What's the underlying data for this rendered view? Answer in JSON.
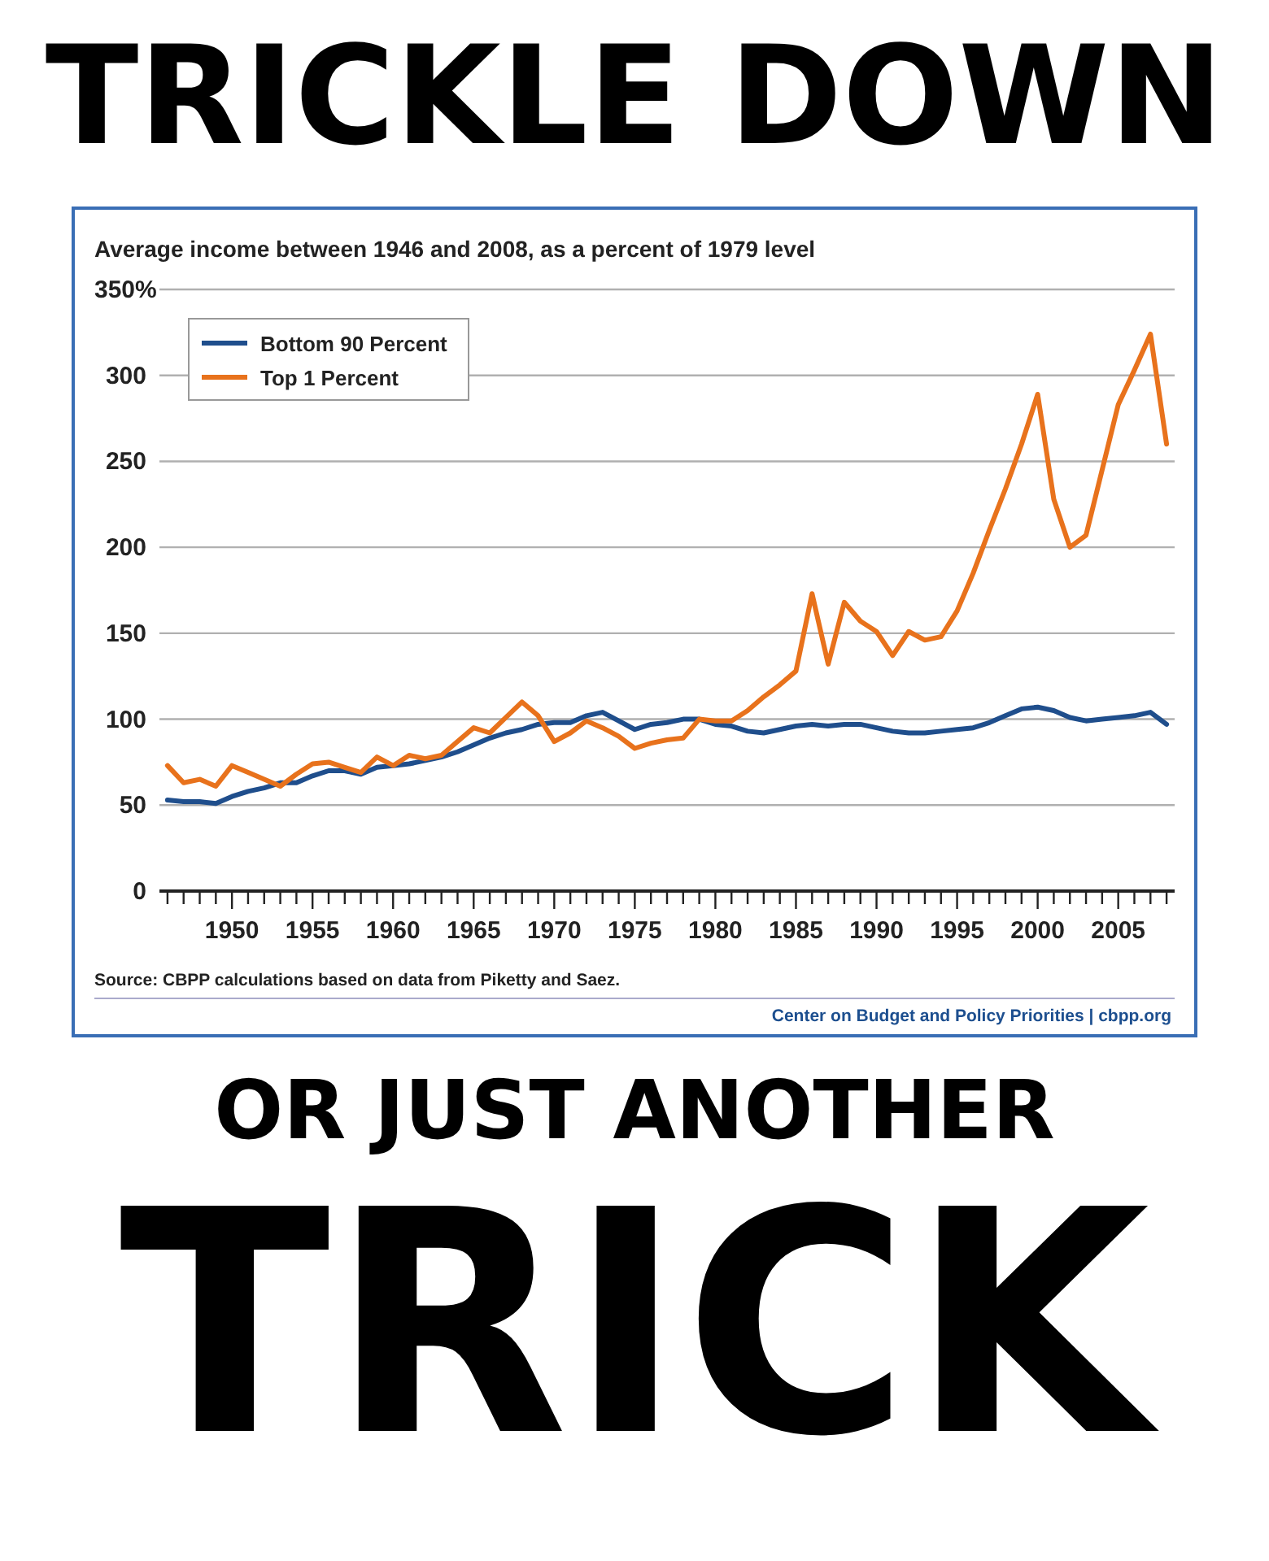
{
  "chart_data": {
    "type": "line",
    "title": "TRICKLE DOWN",
    "subtitle": "Average income between 1946 and 2008, as a percent of 1979 level",
    "annotations": [
      "Source: CBPP calculations based on data from Piketty and Saez.",
      "Center on Budget and Policy Priorities | cbpp.org",
      "OR JUST ANOTHER",
      "TRICK"
    ],
    "x": [
      1946,
      1947,
      1948,
      1949,
      1950,
      1951,
      1952,
      1953,
      1954,
      1955,
      1956,
      1957,
      1958,
      1959,
      1960,
      1961,
      1962,
      1963,
      1964,
      1965,
      1966,
      1967,
      1968,
      1969,
      1970,
      1971,
      1972,
      1973,
      1974,
      1975,
      1976,
      1977,
      1978,
      1979,
      1980,
      1981,
      1982,
      1983,
      1984,
      1985,
      1986,
      1987,
      1988,
      1989,
      1990,
      1991,
      1992,
      1993,
      1994,
      1995,
      1996,
      1997,
      1998,
      1999,
      2000,
      2001,
      2002,
      2003,
      2004,
      2005,
      2006,
      2007,
      2008
    ],
    "series": [
      {
        "name": "Bottom 90 Percent",
        "color": "#1f4e8c",
        "values": [
          53,
          52,
          52,
          51,
          55,
          58,
          60,
          63,
          63,
          67,
          70,
          70,
          68,
          72,
          73,
          74,
          76,
          78,
          81,
          85,
          89,
          92,
          94,
          97,
          98,
          98,
          102,
          104,
          99,
          94,
          97,
          98,
          100,
          100,
          97,
          96,
          93,
          92,
          94,
          96,
          97,
          96,
          97,
          97,
          95,
          93,
          92,
          92,
          93,
          94,
          95,
          98,
          102,
          106,
          107,
          105,
          101,
          99,
          100,
          101,
          102,
          104,
          97
        ]
      },
      {
        "name": "Top 1 Percent",
        "color": "#e8721c",
        "values": [
          73,
          63,
          65,
          61,
          73,
          69,
          65,
          61,
          68,
          74,
          75,
          72,
          69,
          78,
          73,
          79,
          77,
          79,
          87,
          95,
          92,
          101,
          110,
          102,
          87,
          92,
          99,
          95,
          90,
          83,
          86,
          88,
          89,
          100,
          99,
          99,
          105,
          113,
          120,
          128,
          173,
          132,
          168,
          157,
          151,
          137,
          151,
          146,
          148,
          163,
          185,
          210,
          234,
          260,
          289,
          228,
          200,
          207,
          245,
          283,
          303,
          324,
          260
        ]
      }
    ],
    "xlim": [
      1945.5,
      2008.5
    ],
    "xticks": [
      {
        "value": 1946,
        "label": null
      },
      {
        "value": 1947,
        "label": null
      },
      {
        "value": 1948,
        "label": null
      },
      {
        "value": 1949,
        "label": null
      },
      1950,
      {
        "value": 1951,
        "label": null
      },
      {
        "value": 1952,
        "label": null
      },
      {
        "value": 1953,
        "label": null
      },
      {
        "value": 1954,
        "label": null
      },
      1955,
      {
        "value": 1956,
        "label": null
      },
      {
        "value": 1957,
        "label": null
      },
      {
        "value": 1958,
        "label": null
      },
      {
        "value": 1959,
        "label": null
      },
      1960,
      {
        "value": 1961,
        "label": null
      },
      {
        "value": 1962,
        "label": null
      },
      {
        "value": 1963,
        "label": null
      },
      {
        "value": 1964,
        "label": null
      },
      1965,
      {
        "value": 1966,
        "label": null
      },
      {
        "value": 1967,
        "label": null
      },
      {
        "value": 1968,
        "label": null
      },
      {
        "value": 1969,
        "label": null
      },
      1970,
      {
        "value": 1971,
        "label": null
      },
      {
        "value": 1972,
        "label": null
      },
      {
        "value": 1973,
        "label": null
      },
      {
        "value": 1974,
        "label": null
      },
      1975,
      {
        "value": 1976,
        "label": null
      },
      {
        "value": 1977,
        "label": null
      },
      {
        "value": 1978,
        "label": null
      },
      {
        "value": 1979,
        "label": null
      },
      1980,
      {
        "value": 1981,
        "label": null
      },
      {
        "value": 1982,
        "label": null
      },
      {
        "value": 1983,
        "label": null
      },
      {
        "value": 1984,
        "label": null
      },
      1985,
      {
        "value": 1986,
        "label": null
      },
      {
        "value": 1987,
        "label": null
      },
      {
        "value": 1988,
        "label": null
      },
      {
        "value": 1989,
        "label": null
      },
      1990,
      {
        "value": 1991,
        "label": null
      },
      {
        "value": 1992,
        "label": null
      },
      {
        "value": 1993,
        "label": null
      },
      {
        "value": 1994,
        "label": null
      },
      1995,
      {
        "value": 1996,
        "label": null
      },
      {
        "value": 1997,
        "label": null
      },
      {
        "value": 1998,
        "label": null
      },
      {
        "value": 1999,
        "label": null
      },
      2000,
      {
        "value": 2001,
        "label": null
      },
      {
        "value": 2002,
        "label": null
      },
      {
        "value": 2003,
        "label": null
      },
      {
        "value": 2004,
        "label": null
      },
      2005,
      {
        "value": 2006,
        "label": null
      },
      {
        "value": 2007,
        "label": null
      },
      {
        "value": 2008,
        "label": null
      }
    ],
    "ylim": [
      0,
      350
    ],
    "yticks": [
      0,
      50,
      100,
      150,
      200,
      250,
      300,
      {
        "value": 350,
        "label": "350%"
      }
    ],
    "grid": "y",
    "legend": "top left"
  }
}
